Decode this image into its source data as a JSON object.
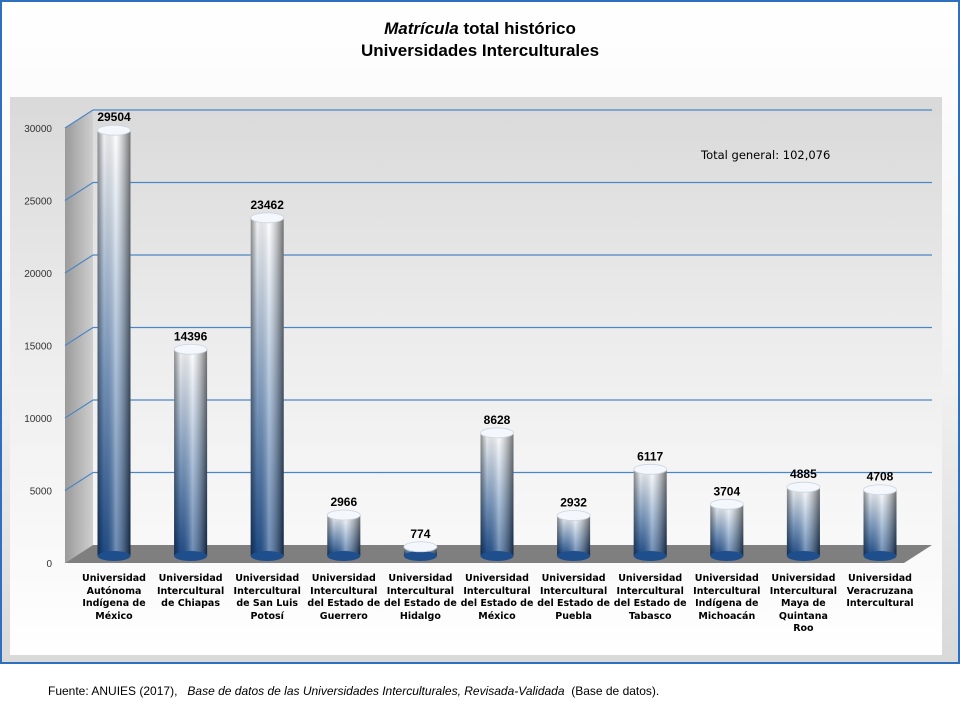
{
  "title": {
    "italic_part": "Matrícula",
    "rest_part": " total histórico",
    "line2": "Universidades Interculturales"
  },
  "annotation": "Total general: 102,076",
  "source": {
    "prefix": "Fuente: ANUIES (2017),",
    "italic": "Base de datos de las Universidades Interculturales, Revisada-Validada",
    "suffix": "(Base de datos)."
  },
  "chart_data": {
    "type": "bar",
    "categories": [
      [
        "Universidad",
        "Autónoma",
        "Indígena de",
        "México"
      ],
      [
        "Universidad",
        "Intercultural",
        "de Chiapas"
      ],
      [
        "Universidad",
        "Intercultural",
        "de San Luis",
        "Potosí"
      ],
      [
        "Universidad",
        "Intercultural",
        "del Estado de",
        "Guerrero"
      ],
      [
        "Universidad",
        "Intercultural",
        "del Estado de",
        "Hidalgo"
      ],
      [
        "Universidad",
        "Intercultural",
        "del Estado de",
        "México"
      ],
      [
        "Universidad",
        "Intercultural",
        "del Estado de",
        "Puebla"
      ],
      [
        "Universidad",
        "Intercultural",
        "del Estado de",
        "Tabasco"
      ],
      [
        "Universidad",
        "Intercultural",
        "Indígena de",
        "Michoacán"
      ],
      [
        "Universidad",
        "Intercultural",
        "Maya de",
        "Quintana",
        "Roo"
      ],
      [
        "Universidad",
        "Veracruzana",
        "Intercultural"
      ]
    ],
    "values": [
      29504,
      14396,
      23462,
      2966,
      774,
      8628,
      2932,
      6117,
      3704,
      4885,
      4708
    ],
    "value_labels": [
      "29504",
      "14396",
      "23462",
      "2966",
      "774",
      "8628",
      "2932",
      "6117",
      "3704",
      "4885",
      "4708"
    ],
    "ylim": [
      0,
      30000
    ],
    "yticks": [
      0,
      5000,
      10000,
      15000,
      20000,
      25000,
      30000
    ],
    "ytick_labels": [
      "0",
      "5000",
      "10000",
      "15000",
      "20000",
      "25000",
      "30000"
    ],
    "grid": true,
    "colors": {
      "bar_dark": "#1f4e8c",
      "bar_light": "#ffffff",
      "grid": "#4a86c5",
      "floor": "#7f7f7f"
    }
  }
}
